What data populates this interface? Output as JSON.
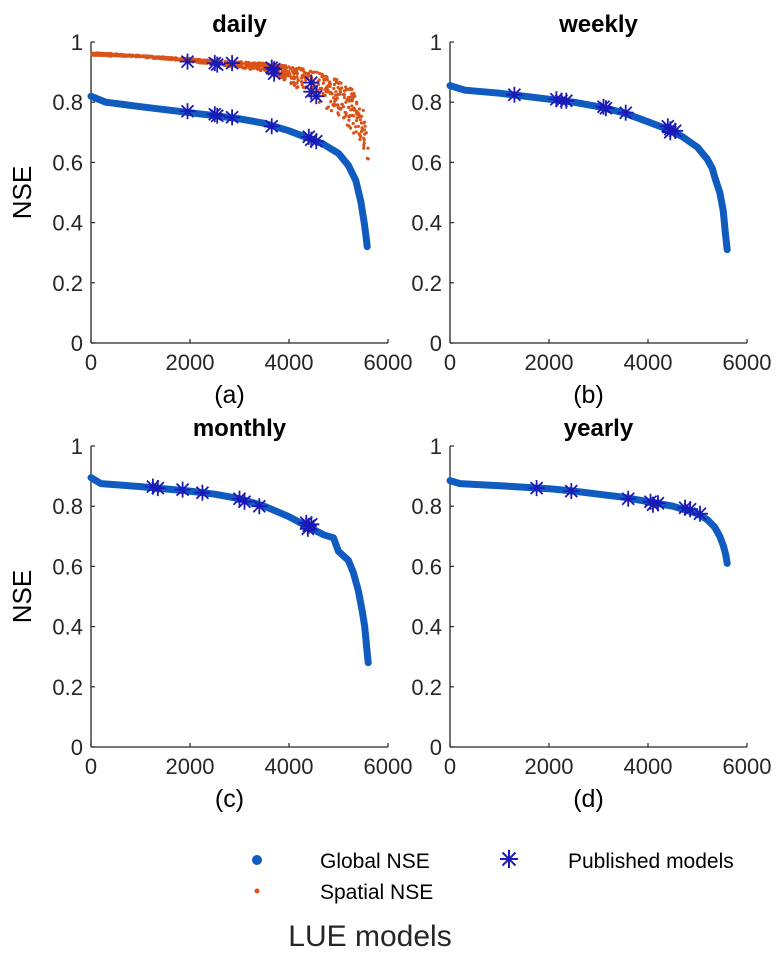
{
  "colors": {
    "global": "#0f5bbf",
    "spatial": "#d95319",
    "published": "#1a1ab8",
    "axis": "#262626"
  },
  "legend": {
    "global_label": "Global NSE",
    "spatial_label": "Spatial NSE",
    "published_label": "Published models"
  },
  "xlabel_main": "LUE models",
  "chart_data": [
    {
      "type": "scatter",
      "title": "daily",
      "panel_label": "(a)",
      "ylabel": "NSE",
      "xlim": [
        0,
        6000
      ],
      "ylim": [
        0,
        1
      ],
      "xticks": [
        "0",
        "2000",
        "4000",
        "6000"
      ],
      "yticks": [
        "0",
        "0.2",
        "0.4",
        "0.6",
        "0.8",
        "1"
      ],
      "series": [
        {
          "name": "Global NSE",
          "x": [
            0,
            300,
            1000,
            2000,
            2500,
            3000,
            3500,
            4000,
            4400,
            4700,
            5000,
            5200,
            5350,
            5450,
            5520,
            5560,
            5580
          ],
          "y": [
            0.82,
            0.8,
            0.785,
            0.765,
            0.755,
            0.745,
            0.73,
            0.705,
            0.68,
            0.66,
            0.63,
            0.59,
            0.54,
            0.47,
            0.4,
            0.35,
            0.32
          ]
        },
        {
          "name": "Spatial NSE",
          "x": [
            0,
            1000,
            2000,
            3000,
            3500,
            4000,
            4500,
            5000,
            5300,
            5500,
            5600
          ],
          "y_upper": [
            0.965,
            0.955,
            0.945,
            0.935,
            0.93,
            0.92,
            0.905,
            0.875,
            0.84,
            0.78,
            0.66
          ],
          "y_lower": [
            0.955,
            0.95,
            0.935,
            0.915,
            0.9,
            0.865,
            0.81,
            0.75,
            0.69,
            0.62,
            0.56
          ]
        },
        {
          "name": "Published models",
          "points": [
            [
              1950,
              0.935
            ],
            [
              2500,
              0.93
            ],
            [
              2550,
              0.925
            ],
            [
              2850,
              0.93
            ],
            [
              3650,
              0.915
            ],
            [
              3700,
              0.91
            ],
            [
              3700,
              0.895
            ],
            [
              4450,
              0.865
            ],
            [
              4450,
              0.835
            ],
            [
              4550,
              0.82
            ],
            [
              1950,
              0.77
            ],
            [
              2500,
              0.76
            ],
            [
              2550,
              0.755
            ],
            [
              2850,
              0.75
            ],
            [
              3650,
              0.72
            ],
            [
              4400,
              0.685
            ],
            [
              4450,
              0.675
            ],
            [
              4550,
              0.67
            ]
          ]
        }
      ]
    },
    {
      "type": "scatter",
      "title": "weekly",
      "panel_label": "(b)",
      "ylabel": "",
      "xlim": [
        0,
        6000
      ],
      "ylim": [
        0,
        1
      ],
      "xticks": [
        "0",
        "2000",
        "4000",
        "6000"
      ],
      "yticks": [
        "0",
        "0.2",
        "0.4",
        "0.6",
        "0.8",
        "1"
      ],
      "series": [
        {
          "name": "Global NSE",
          "x": [
            0,
            300,
            1000,
            2000,
            2500,
            3000,
            3500,
            4000,
            4400,
            4700,
            5000,
            5200,
            5300,
            5350,
            5450,
            5520,
            5560,
            5600
          ],
          "y": [
            0.855,
            0.84,
            0.83,
            0.81,
            0.8,
            0.785,
            0.765,
            0.735,
            0.71,
            0.685,
            0.65,
            0.61,
            0.58,
            0.55,
            0.5,
            0.44,
            0.37,
            0.31
          ]
        },
        {
          "name": "Published models",
          "points": [
            [
              1300,
              0.825
            ],
            [
              2150,
              0.81
            ],
            [
              2250,
              0.805
            ],
            [
              2350,
              0.805
            ],
            [
              3100,
              0.785
            ],
            [
              3150,
              0.78
            ],
            [
              3550,
              0.765
            ],
            [
              4400,
              0.72
            ],
            [
              4450,
              0.71
            ],
            [
              4550,
              0.705
            ],
            [
              4450,
              0.7
            ]
          ]
        }
      ]
    },
    {
      "type": "scatter",
      "title": "monthly",
      "panel_label": "(c)",
      "ylabel": "NSE",
      "xlim": [
        0,
        6000
      ],
      "ylim": [
        0,
        1
      ],
      "xticks": [
        "0",
        "2000",
        "4000",
        "6000"
      ],
      "yticks": [
        "0",
        "0.2",
        "0.4",
        "0.6",
        "0.8",
        "1"
      ],
      "series": [
        {
          "name": "Global NSE",
          "x": [
            0,
            200,
            1000,
            2000,
            2500,
            3000,
            3500,
            4000,
            4400,
            4700,
            4900,
            5000,
            5200,
            5300,
            5400,
            5480,
            5530,
            5570,
            5600
          ],
          "y": [
            0.895,
            0.875,
            0.865,
            0.85,
            0.84,
            0.825,
            0.8,
            0.765,
            0.73,
            0.705,
            0.695,
            0.65,
            0.62,
            0.58,
            0.52,
            0.45,
            0.4,
            0.33,
            0.28
          ]
        },
        {
          "name": "Published models",
          "points": [
            [
              1250,
              0.865
            ],
            [
              1350,
              0.86
            ],
            [
              1850,
              0.855
            ],
            [
              2250,
              0.845
            ],
            [
              3000,
              0.825
            ],
            [
              3100,
              0.815
            ],
            [
              3400,
              0.8
            ],
            [
              4350,
              0.745
            ],
            [
              4400,
              0.735
            ],
            [
              4450,
              0.74
            ],
            [
              4380,
              0.725
            ]
          ]
        }
      ]
    },
    {
      "type": "scatter",
      "title": "yearly",
      "panel_label": "(d)",
      "ylabel": "",
      "xlim": [
        0,
        6000
      ],
      "ylim": [
        0,
        1
      ],
      "xticks": [
        "0",
        "2000",
        "4000",
        "6000"
      ],
      "yticks": [
        "0",
        "0.2",
        "0.4",
        "0.6",
        "0.8",
        "1"
      ],
      "series": [
        {
          "name": "Global NSE",
          "x": [
            0,
            200,
            1000,
            2000,
            2500,
            3000,
            3500,
            4000,
            4500,
            5000,
            5200,
            5350,
            5450,
            5520,
            5570,
            5600
          ],
          "y": [
            0.885,
            0.875,
            0.868,
            0.858,
            0.85,
            0.84,
            0.83,
            0.815,
            0.8,
            0.775,
            0.755,
            0.73,
            0.7,
            0.67,
            0.64,
            0.61
          ]
        },
        {
          "name": "Published models",
          "points": [
            [
              1750,
              0.86
            ],
            [
              2450,
              0.85
            ],
            [
              3600,
              0.825
            ],
            [
              4050,
              0.815
            ],
            [
              4100,
              0.805
            ],
            [
              4200,
              0.81
            ],
            [
              4750,
              0.795
            ],
            [
              4850,
              0.79
            ],
            [
              5050,
              0.775
            ]
          ]
        }
      ]
    }
  ]
}
